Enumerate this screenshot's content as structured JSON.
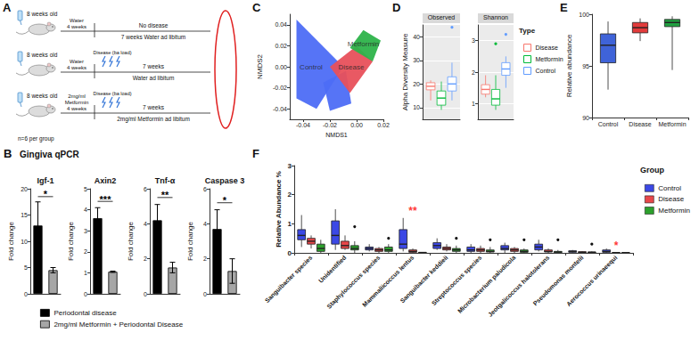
{
  "diagram": {
    "panel": "A",
    "rows": [
      {
        "age": "8 weeks old",
        "pre": [
          "Water",
          "4 weeks"
        ],
        "above": "No disease",
        "below": "7 weeks Water ad libitum"
      },
      {
        "age": "8 weeks old",
        "pre": [
          "Water",
          "4 weeks"
        ],
        "disease": "Disease (ba load)",
        "above": "7 weeks",
        "below": "Water ad libitum"
      },
      {
        "age": "8 weeks old",
        "pre": [
          "2mg/ml Metformin",
          "4 weeks"
        ],
        "disease": "Disease (ba load)",
        "above": "7 weeks",
        "below": "2mg/ml Metformin ad libitum"
      }
    ],
    "group_size": "n=6 per group"
  },
  "chart_data": [
    {
      "panel": "B",
      "title": "Gingiva qPCR",
      "subtitle": "Igf-1",
      "type": "bar",
      "ylabel": "Fold change",
      "categories": [
        "Periodontal disease",
        "2mg/ml Metformin + Periodontal Disease"
      ],
      "values": [
        13,
        4.5
      ],
      "errors": [
        4.5,
        0.5
      ],
      "colors": [
        "#000000",
        "#a6a6a6"
      ],
      "ylim": [
        0,
        20
      ],
      "yticks": [
        0,
        5,
        10,
        15,
        20
      ],
      "tick_labels": "y",
      "grid": false,
      "legend": "bottom",
      "annotations": [
        {
          "text": "*",
          "y": 18.5
        }
      ]
    },
    {
      "subtitle": "Axin2",
      "type": "bar",
      "ylabel": "Fold change",
      "categories": [
        "Periodontal disease",
        "2mg/ml Metformin + Periodontal Disease"
      ],
      "values": [
        3.6,
        1.05
      ],
      "errors": [
        0.5,
        0.03
      ],
      "colors": [
        "#000000",
        "#a6a6a6"
      ],
      "ylim": [
        0,
        5
      ],
      "yticks": [
        0,
        1,
        2,
        3,
        4,
        5
      ],
      "tick_labels": "y",
      "grid": false,
      "annotations": [
        {
          "text": "***",
          "y": 4.4
        }
      ]
    },
    {
      "subtitle": "Tnf-α",
      "type": "bar",
      "ylabel": "Fold change",
      "categories": [
        "Periodontal disease",
        "2mg/ml Metformin + Periodontal Disease"
      ],
      "values": [
        4.2,
        1.5
      ],
      "errors": [
        0.9,
        0.3
      ],
      "colors": [
        "#000000",
        "#a6a6a6"
      ],
      "ylim": [
        0,
        6
      ],
      "yticks": [
        0,
        2,
        4,
        6
      ],
      "tick_labels": "y",
      "grid": false,
      "annotations": [
        {
          "text": "**",
          "y": 5.5
        }
      ]
    },
    {
      "subtitle": "Caspase 3",
      "type": "bar",
      "ylabel": "Fold change",
      "categories": [
        "Periodontal disease",
        "2mg/ml Metformin + Periodontal Disease"
      ],
      "values": [
        3.7,
        1.3
      ],
      "errors": [
        1.1,
        0.7
      ],
      "colors": [
        "#000000",
        "#a6a6a6"
      ],
      "ylim": [
        0,
        6
      ],
      "yticks": [
        0,
        2,
        4,
        6
      ],
      "tick_labels": "y",
      "grid": false,
      "annotations": [
        {
          "text": "*",
          "y": 5.2
        }
      ]
    },
    {
      "panel": "C",
      "type": "polygon",
      "xlabel": "NMDS1",
      "ylabel": "NMDS2",
      "xlim": [
        -0.05,
        0.02
      ],
      "xticks": [
        -0.04,
        -0.02,
        {
          "value": 0,
          "label": "0.00"
        },
        0.02
      ],
      "ylim": [
        -0.05,
        0.05
      ],
      "yticks": [
        -0.04,
        -0.02,
        {
          "value": 0,
          "label": "0.00"
        },
        0.02,
        0.04
      ],
      "grid": false,
      "series": [
        {
          "color": "#4d6df5",
          "points": [
            [
              -0.045,
              0.045
            ],
            [
              -0.01,
              0.0
            ],
            [
              -0.02,
              -0.02
            ],
            [
              -0.03,
              -0.04
            ],
            [
              -0.045,
              -0.03
            ]
          ]
        },
        {
          "color": "#4d6df5",
          "points": [
            [
              -0.025,
              -0.015
            ],
            [
              -0.008,
              -0.004
            ],
            [
              -0.004,
              -0.035
            ],
            [
              -0.02,
              -0.042
            ]
          ]
        },
        {
          "color": "#e8505b",
          "points": [
            [
              -0.02,
              0.0
            ],
            [
              0.0,
              0.02
            ],
            [
              0.012,
              0.005
            ],
            [
              -0.005,
              -0.025
            ]
          ]
        },
        {
          "color": "#2db34a",
          "points": [
            [
              -0.005,
              0.018
            ],
            [
              0.005,
              0.035
            ],
            [
              0.018,
              0.025
            ],
            [
              0.012,
              0.005
            ]
          ]
        }
      ],
      "annotations": [
        {
          "text": "Control",
          "x": -0.034,
          "y": 0.0
        },
        {
          "text": "Disease",
          "x": -0.004,
          "y": 0.0
        },
        {
          "text": "Metformin",
          "x": 0.005,
          "y": 0.022
        }
      ]
    },
    {
      "panel": "D",
      "type": "boxplot",
      "subtitle": "Observed",
      "ylabel": "Alpha Diversity Measure",
      "categories": [
        null
      ],
      "tick_labels": "y",
      "ylim": [
        5,
        45
      ],
      "yticks": [
        10,
        20,
        30,
        40
      ],
      "grid": true,
      "series": [
        {
          "name": "Disease",
          "color": "#f8766d",
          "values": [
            [
              13,
              17.5,
              19,
              20.5,
              21.5
            ]
          ]
        },
        {
          "name": "Metformin",
          "color": "#00ba38",
          "values": [
            [
              9,
              11,
              14,
              17,
              21
            ]
          ]
        },
        {
          "name": "Control",
          "color": "#619cff",
          "values": [
            [
              13,
              17,
              20,
              23,
              29
            ]
          ],
          "outliers": [
            44
          ]
        }
      ]
    },
    {
      "type": "boxplot",
      "subtitle": "Shannon",
      "categories": [
        null
      ],
      "tick_labels": "y",
      "ylim": [
        0.5,
        3.5
      ],
      "yticks": [
        1,
        2,
        3
      ],
      "grid": true,
      "legend": "right",
      "legend_title": "Type",
      "series": [
        {
          "name": "Disease",
          "color": "#f8766d",
          "values": [
            [
              1.2,
              1.3,
              1.45,
              1.6,
              1.9
            ]
          ]
        },
        {
          "name": "Metformin",
          "color": "#00ba38",
          "values": [
            [
              0.8,
              0.95,
              1.15,
              1.45,
              1.9
            ]
          ],
          "outliers": [
            2.9
          ]
        },
        {
          "name": "Control",
          "color": "#619cff",
          "values": [
            [
              1.5,
              1.9,
              2.1,
              2.3,
              2.5
            ]
          ],
          "outliers": [
            3.2
          ]
        }
      ]
    },
    {
      "panel": "E",
      "type": "boxplot",
      "ylabel": "Relative abundance",
      "categories": [
        "Control",
        "Disease",
        "Metformin"
      ],
      "values": [
        [
          92.7,
          95.3,
          97.0,
          98.1,
          99.3
        ],
        [
          97.4,
          98.2,
          98.7,
          99.2,
          99.6
        ],
        [
          94.6,
          98.8,
          99.2,
          99.5,
          99.8
        ]
      ],
      "colors": [
        "#3f63d8",
        "#e23b3b",
        "#20a040"
      ],
      "ylim": [
        90,
        100
      ],
      "yticks": [
        90,
        95,
        100
      ],
      "grid": false
    },
    {
      "panel": "F",
      "type": "boxplot",
      "ylabel": "Relative Abundance %",
      "categories": [
        "Sanguibacter species",
        "Unidentified",
        "Staphylococcus species",
        "Mammaliicoccus lentus",
        "Sanguibacter keddieii",
        "Streptococcus species",
        "Microbacterium paludicola",
        "Jeotgalicoccus halotolerans",
        "Pseudomonas montelii",
        "Aerococcus urinaeequi"
      ],
      "ylim": [
        0,
        3
      ],
      "yticks": [
        0,
        1,
        2,
        3
      ],
      "grid": false,
      "legend": "right",
      "legend_title": "Group",
      "series": [
        {
          "name": "Control",
          "color": "#3b48e5",
          "values": [
            [
              0.2,
              0.45,
              0.6,
              0.8,
              1.3
            ],
            [
              0.1,
              0.3,
              0.6,
              1.1,
              1.5
            ],
            [
              0.05,
              0.1,
              0.15,
              0.2,
              0.3
            ],
            [
              0.05,
              0.15,
              0.3,
              0.8,
              1.2
            ],
            [
              0.1,
              0.15,
              0.25,
              0.35,
              0.5
            ],
            [
              0.0,
              0.05,
              0.1,
              0.2,
              0.3
            ],
            [
              0.0,
              0.1,
              0.15,
              0.25,
              0.35
            ],
            [
              0.05,
              0.1,
              0.2,
              0.3,
              0.45
            ],
            [
              0.0,
              0.02,
              0.05,
              0.07,
              0.1
            ],
            [
              0.0,
              0.02,
              0.05,
              0.1,
              0.15
            ]
          ]
        },
        {
          "name": "Disease",
          "color": "#e8474a",
          "values": [
            [
              0.15,
              0.3,
              0.4,
              0.5,
              0.6
            ],
            [
              0.1,
              0.15,
              0.25,
              0.4,
              0.6
            ],
            [
              0.0,
              0.05,
              0.1,
              0.15,
              0.2
            ],
            [
              0.0,
              0.02,
              0.05,
              0.1,
              0.15
            ],
            [
              0.05,
              0.1,
              0.15,
              0.2,
              0.3
            ],
            [
              0.0,
              0.05,
              0.1,
              0.15,
              0.25
            ],
            [
              0.0,
              0.05,
              0.1,
              0.15,
              0.2
            ],
            [
              0.0,
              0.03,
              0.05,
              0.1,
              0.15
            ],
            [
              0.0,
              0.01,
              0.02,
              0.04,
              0.06
            ],
            [
              0.0,
              0.0,
              0.01,
              0.01,
              0.02
            ]
          ]
        },
        {
          "name": "Metformin",
          "color": "#2ca02c",
          "values": [
            [
              0.0,
              0.05,
              0.15,
              0.3,
              0.45
            ],
            [
              0.0,
              0.1,
              0.15,
              0.25,
              0.4
            ],
            [
              0.0,
              0.05,
              0.1,
              0.2,
              0.3
            ],
            [
              0.0,
              0.0,
              0.01,
              0.02,
              0.03
            ],
            [
              0.0,
              0.05,
              0.1,
              0.15,
              0.25
            ],
            [
              0.0,
              0.03,
              0.05,
              0.1,
              0.2
            ],
            [
              0.0,
              0.02,
              0.05,
              0.1,
              0.15
            ],
            [
              0.0,
              0.01,
              0.03,
              0.05,
              0.1
            ],
            [
              0.0,
              0.01,
              0.02,
              0.03,
              0.05
            ],
            [
              0.0,
              0.0,
              0.01,
              0.01,
              0.02
            ]
          ],
          "outliers": [
            {
              "category": "Unidentified",
              "value": 0.9
            },
            {
              "category": "Staphylococcus species",
              "value": 0.5
            },
            {
              "category": "Sanguibacter keddieii",
              "value": 0.5
            },
            {
              "category": "Streptococcus species",
              "value": 0.45
            },
            {
              "category": "Microbacterium paludicola",
              "value": 0.45
            },
            {
              "category": "Jeotgalicoccus halotolerans",
              "value": 0.45
            },
            {
              "category": "Pseudomonas montelii",
              "value": 0.3
            }
          ]
        }
      ],
      "annotations": [
        {
          "text": "**",
          "category": "Mammaliicoccus lentus",
          "y": 1.45,
          "color": "#ff0000"
        },
        {
          "text": "*",
          "category": "Aerococcus urinaeequi",
          "y": 0.25,
          "color": "#ff0000"
        }
      ]
    }
  ]
}
